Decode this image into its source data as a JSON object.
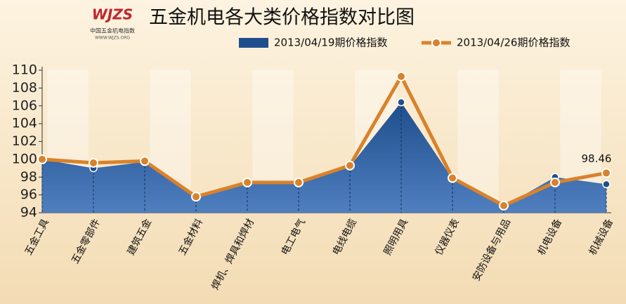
{
  "logo": {
    "mark": "WJZS",
    "name": "中国五金机电指数",
    "url": "WWW.WJZS.ORG"
  },
  "chart_data": {
    "type": "line",
    "title": "五金机电各大类价格指数对比图",
    "categories": [
      "五金工具",
      "五金零部件",
      "建筑五金",
      "五金材料",
      "焊机、焊具和焊材",
      "电工电气",
      "电线电缆",
      "照明用具",
      "仪器仪表",
      "安防设备与用品",
      "机电设备",
      "机械设备"
    ],
    "series": [
      {
        "name": "2013/04/19期价格指数",
        "type": "area",
        "color": "#1f4e8c",
        "values": [
          100.0,
          99.0,
          99.7,
          95.8,
          97.3,
          97.3,
          99.2,
          106.4,
          97.8,
          94.7,
          98.0,
          97.2
        ]
      },
      {
        "name": "2013/04/26期价格指数",
        "type": "line",
        "color": "#d9822b",
        "values": [
          100.0,
          99.6,
          99.8,
          95.8,
          97.4,
          97.4,
          99.3,
          109.3,
          97.9,
          94.8,
          97.4,
          98.46
        ],
        "value_labels": [
          null,
          null,
          null,
          null,
          null,
          null,
          null,
          null,
          null,
          null,
          null,
          "98.46"
        ]
      }
    ],
    "ylim": [
      94,
      110
    ],
    "yticks": [
      94,
      96,
      98,
      100,
      102,
      104,
      106,
      108,
      110
    ],
    "legend": "top"
  }
}
